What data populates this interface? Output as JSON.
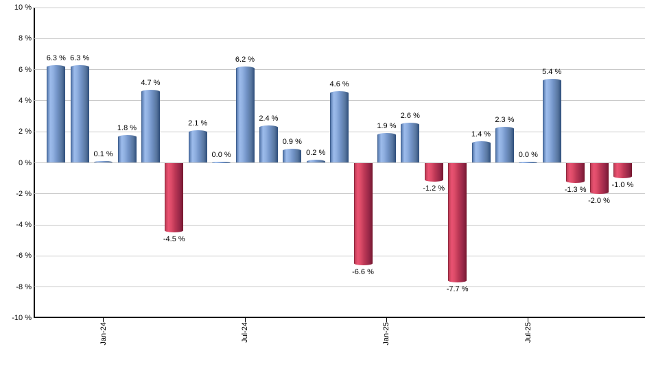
{
  "chart": {
    "background": "#ffffff"
  },
  "chart_data": {
    "type": "bar",
    "title": "",
    "values": [
      6.3,
      6.3,
      0.1,
      1.8,
      4.7,
      -4.5,
      2.1,
      0.0,
      6.2,
      2.4,
      0.9,
      0.2,
      4.6,
      -6.6,
      1.9,
      2.6,
      -1.2,
      -7.7,
      1.4,
      2.3,
      0.0,
      5.4,
      -1.3,
      -2.0,
      -1.0
    ],
    "value_labels": [
      "6.3 %",
      "6.3 %",
      "0.1 %",
      "1.8 %",
      "4.7 %",
      "-4.5 %",
      "2.1 %",
      "0.0 %",
      "6.2 %",
      "2.4 %",
      "0.9 %",
      "0.2 %",
      "4.6 %",
      "-6.6 %",
      "1.9 %",
      "2.6 %",
      "-1.2 %",
      "-7.7 %",
      "1.4 %",
      "2.3 %",
      "0.0 %",
      "5.4 %",
      "-1.3 %",
      "-2.0 %",
      "-1.0 %"
    ],
    "x_axis": {
      "tick_bar_indices": [
        2,
        8,
        14,
        20
      ],
      "tick_labels": [
        "Jan-24",
        "Jul-24",
        "Jan-25",
        "Jul-25"
      ]
    },
    "y_axis": {
      "ylim": [
        -10,
        10
      ],
      "tick_values": [
        10,
        8,
        6,
        4,
        2,
        0,
        -2,
        -4,
        -6,
        -8,
        -10
      ],
      "tick_labels": [
        "10 %",
        "8 %",
        "6 %",
        "4 %",
        "2 %",
        "0 %",
        "-2 %",
        "-4 %",
        "-6 %",
        "-8 %",
        "-10 %"
      ]
    },
    "grid": true,
    "legend_position": "none",
    "colors": {
      "positive_bar_main": "#7495c9",
      "positive_bar_highlight": "#9dbcec",
      "positive_bar_edge": "#2e4d7a",
      "negative_bar_main": "#bd3856",
      "negative_bar_highlight": "#ea5272",
      "negative_bar_edge": "#76182f",
      "gridline": "#c8c8c8",
      "axis_line": "#000000",
      "label_text": "#000000"
    }
  }
}
